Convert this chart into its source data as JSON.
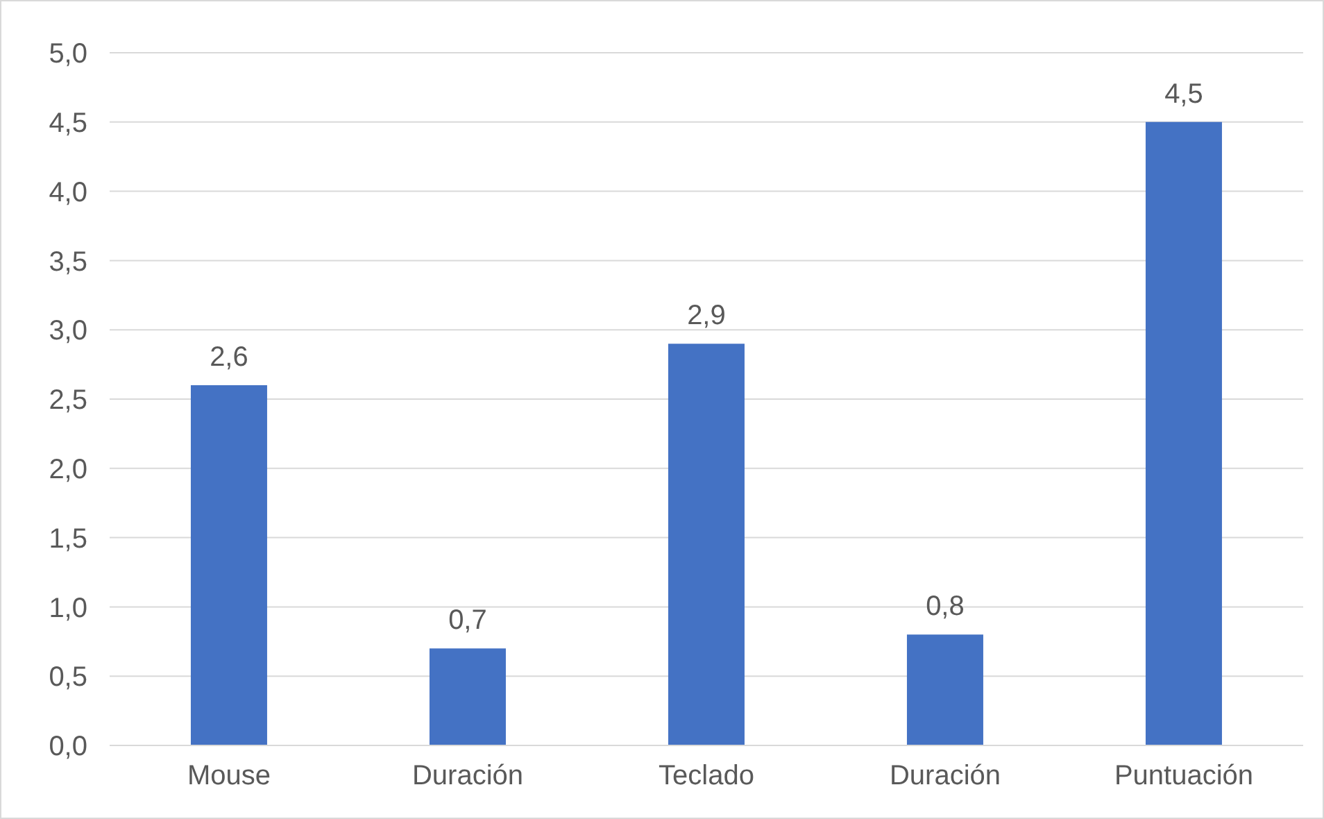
{
  "chart_data": {
    "type": "bar",
    "categories": [
      "Mouse",
      "Duración",
      "Teclado",
      "Duración",
      "Puntuación"
    ],
    "values": [
      2.6,
      0.7,
      2.9,
      0.8,
      4.5
    ],
    "value_labels": [
      "2,6",
      "0,7",
      "2,9",
      "0,8",
      "4,5"
    ],
    "color": "#4472c4",
    "ylim": [
      0,
      5
    ],
    "yticks": [
      {
        "value": 0,
        "label": "0,0"
      },
      {
        "value": 0.5,
        "label": "0,5"
      },
      {
        "value": 1,
        "label": "1,0"
      },
      {
        "value": 1.5,
        "label": "1,5"
      },
      {
        "value": 2,
        "label": "2,0"
      },
      {
        "value": 2.5,
        "label": "2,5"
      },
      {
        "value": 3,
        "label": "3,0"
      },
      {
        "value": 3.5,
        "label": "3,5"
      },
      {
        "value": 4,
        "label": "4,0"
      },
      {
        "value": 4.5,
        "label": "4,5"
      },
      {
        "value": 5,
        "label": "5,0"
      }
    ],
    "grid": "y"
  }
}
